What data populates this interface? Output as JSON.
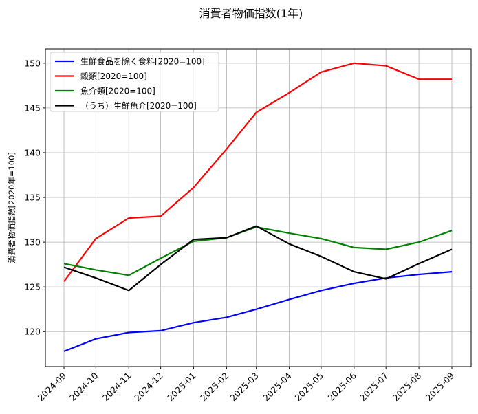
{
  "chart_data": {
    "type": "line",
    "title": "消費者物価指数(1年)",
    "xlabel": "",
    "ylabel": "消費者物価指数[2020年=100]",
    "ylim": [
      116.1,
      151.6
    ],
    "yticks": [
      120,
      125,
      130,
      135,
      140,
      145,
      150
    ],
    "grid": true,
    "legend_position": "upper left",
    "x": [
      "2024-09",
      "2024-10",
      "2024-11",
      "2024-12",
      "2025-01",
      "2025-02",
      "2025-03",
      "2025-04",
      "2025-05",
      "2025-06",
      "2025-07",
      "2025-08",
      "2025-09"
    ],
    "x_days": [
      0,
      30,
      61,
      91,
      122,
      153,
      181,
      212,
      242,
      273,
      303,
      334,
      365
    ],
    "series": [
      {
        "name": "生鮮食品を除く食料[2020=100]",
        "color": "#0000ff",
        "values": [
          117.8,
          119.2,
          119.9,
          120.1,
          121.0,
          121.6,
          122.5,
          123.6,
          124.6,
          125.4,
          126.0,
          126.4,
          126.7
        ]
      },
      {
        "name": "穀類[2020=100]",
        "color": "#ff0000",
        "values": [
          125.6,
          130.4,
          132.7,
          132.9,
          136.1,
          140.4,
          144.5,
          146.7,
          149.0,
          150.0,
          149.7,
          148.2,
          148.2
        ]
      },
      {
        "name": "魚介類[2020=100]",
        "color": "#008000",
        "values": [
          127.6,
          126.9,
          126.3,
          128.2,
          130.1,
          130.5,
          131.7,
          131.0,
          130.4,
          129.4,
          129.2,
          130.0,
          131.3
        ]
      },
      {
        "name": "（うち）生鮮魚介[2020=100]",
        "color": "#000000",
        "values": [
          127.2,
          126.0,
          124.6,
          127.5,
          130.3,
          130.5,
          131.8,
          129.8,
          128.4,
          126.7,
          125.9,
          127.6,
          129.2
        ]
      }
    ]
  }
}
